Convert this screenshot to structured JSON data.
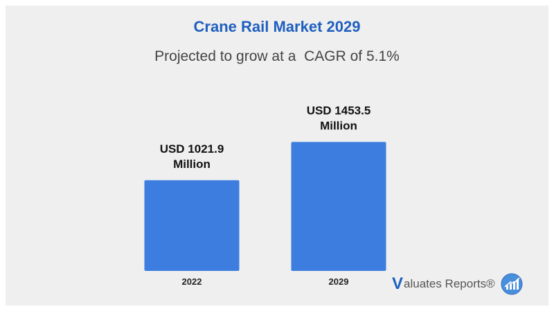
{
  "title": "Crane Rail Market 2029",
  "subtitle": "Projected to grow at a  CAGR of 5.1%",
  "brand": {
    "initial": "V",
    "text": "aluates Reports®"
  },
  "colors": {
    "bar": "#3c7ddf",
    "title": "#1f5fbf",
    "background": "#efefef"
  },
  "chart_data": {
    "type": "bar",
    "title": "Crane Rail Market 2029",
    "subtitle": "Projected to grow at a  CAGR of 5.1%",
    "categories": [
      "2022",
      "2029"
    ],
    "values": [
      1021.9,
      1453.5
    ],
    "data_labels": [
      [
        "USD 1021.9",
        "Million"
      ],
      [
        "USD 1453.5",
        "Million"
      ]
    ],
    "unit": "USD Million",
    "xlabel": "",
    "ylabel": "",
    "ylim": [
      0,
      1680
    ],
    "grid": false,
    "legend": "none"
  }
}
